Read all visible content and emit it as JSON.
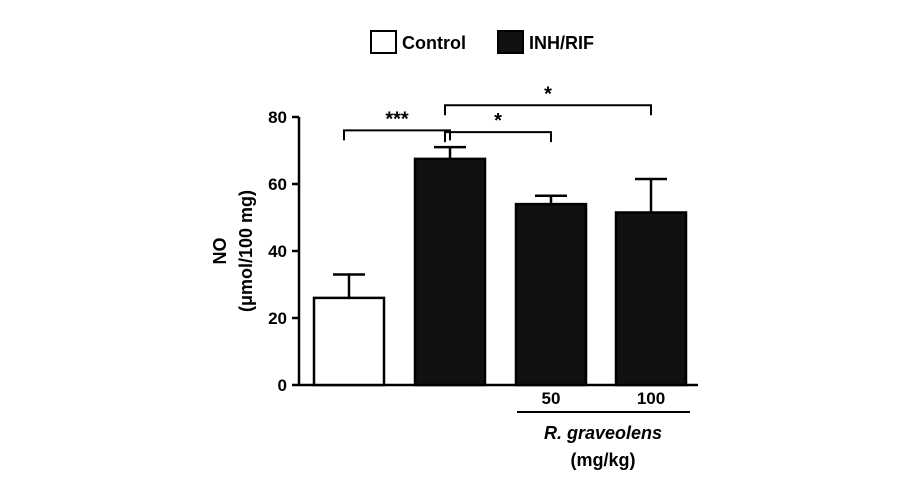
{
  "legend": {
    "items": [
      {
        "label": "Control",
        "fill": "#ffffff"
      },
      {
        "label": "INH/RIF",
        "fill": "#111111"
      }
    ]
  },
  "chart_data": {
    "type": "bar",
    "ylabel_line1": "NO",
    "ylabel_line2": "(μmol/100 mg)",
    "ylim": [
      0,
      80
    ],
    "yticks": [
      0,
      20,
      40,
      60,
      80
    ],
    "bars": [
      {
        "group": "Control",
        "dose": "",
        "value": 26,
        "error": 7
      },
      {
        "group": "INH/RIF",
        "dose": "",
        "value": 67.5,
        "error": 3.5
      },
      {
        "group": "INH/RIF",
        "dose": "50",
        "value": 54,
        "error": 2.5
      },
      {
        "group": "INH/RIF",
        "dose": "100",
        "value": 51.5,
        "error": 10
      }
    ],
    "treatment_label": "R. graveolens",
    "treatment_unit": "(mg/kg)",
    "significance": [
      {
        "from": 0,
        "to": 1,
        "label": "***",
        "level": 76
      },
      {
        "from": 1,
        "to": 2,
        "label": "*",
        "level": 75.5
      },
      {
        "from": 1,
        "to": 3,
        "label": "*",
        "level": 83.5
      }
    ]
  }
}
